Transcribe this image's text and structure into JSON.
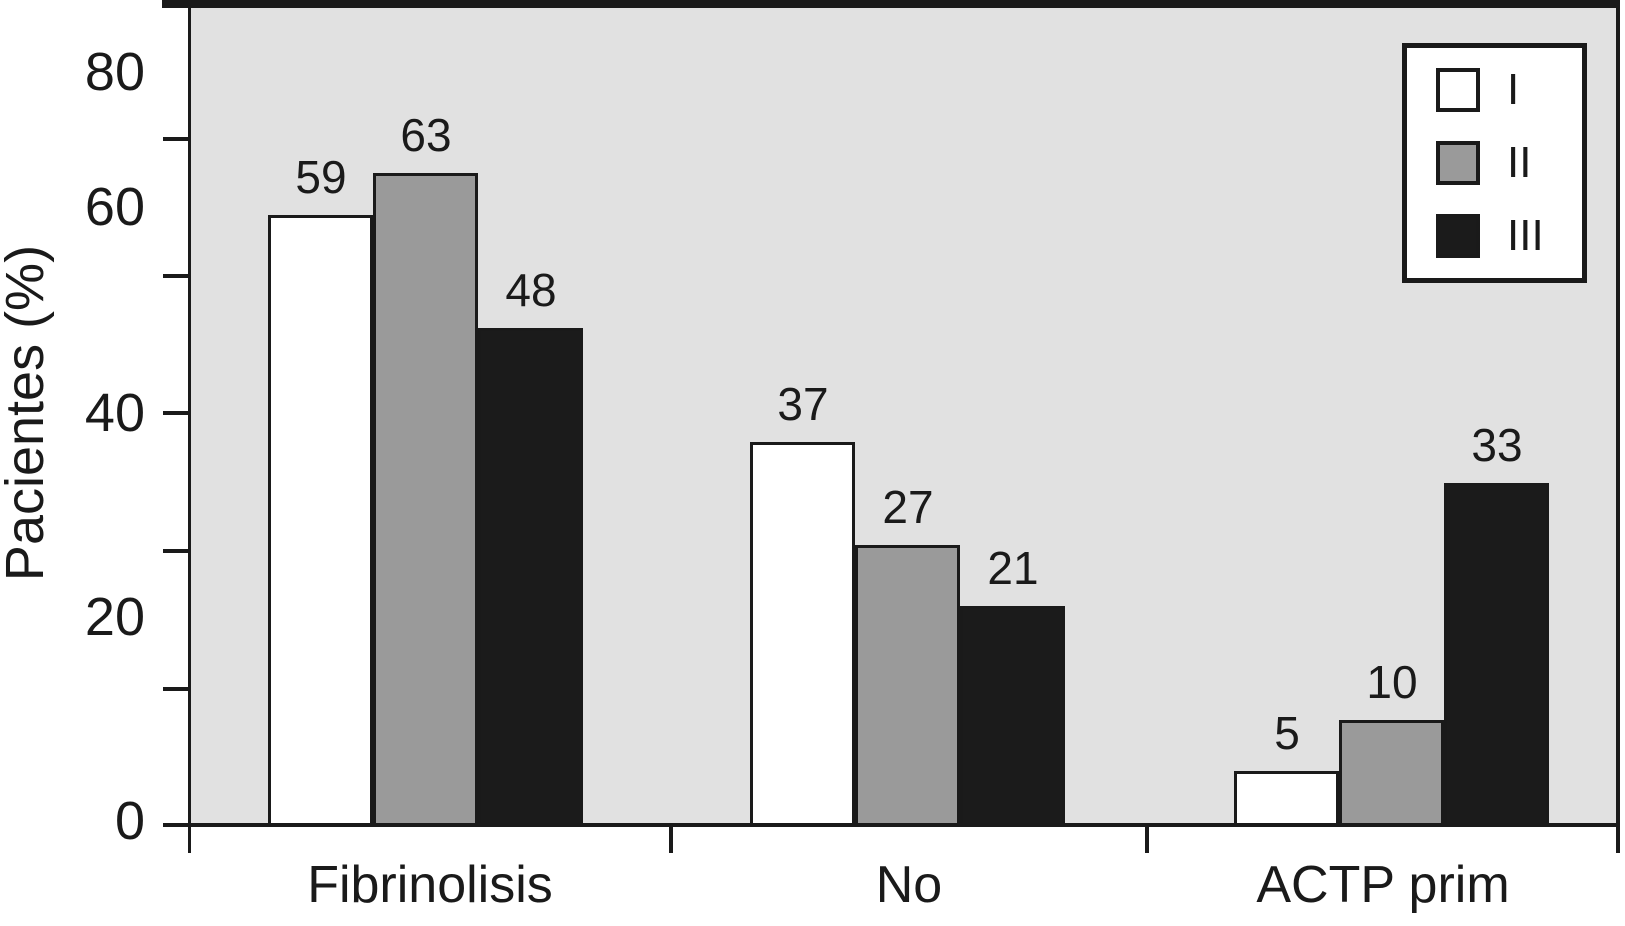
{
  "chart_data": {
    "type": "bar",
    "title": "",
    "xlabel": "",
    "ylabel": "Pacientes (%)",
    "categories": [
      "Fibrinolisis",
      "No",
      "ACTP prim"
    ],
    "series": [
      {
        "name": "I",
        "fill": "#ffffff",
        "values": [
          59,
          37,
          5
        ]
      },
      {
        "name": "II",
        "fill": "#9a9a9a",
        "values": [
          63,
          27,
          10
        ]
      },
      {
        "name": "III",
        "fill": "#1b1b1b",
        "values": [
          48,
          21,
          33
        ]
      }
    ],
    "value_labels": true,
    "ylim": [
      0,
      80
    ],
    "yticks": [
      0,
      20,
      40,
      60,
      80
    ],
    "grid": false,
    "legend": {
      "position": "top-right",
      "entries": [
        "I",
        "II",
        "III"
      ]
    },
    "colors": {
      "plot_bg": "#e1e1e1",
      "axis": "#1a1a1a",
      "text": "#1a1a1a",
      "legend_bg": "#ffffff"
    }
  }
}
